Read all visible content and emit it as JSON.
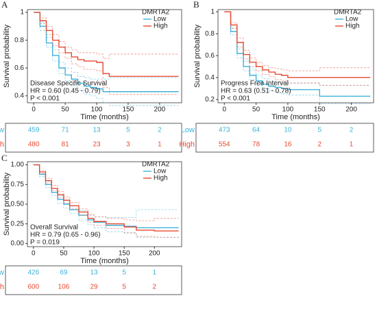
{
  "chart_data": [
    {
      "type": "km",
      "panel_label": "A",
      "legend_title": "DMRTA2",
      "xlabel": "Time (months)",
      "ylabel": "Survival probability",
      "annotation": [
        "Disease Specific Survival",
        "HR = 0.60 (0.45 - 0.79)",
        "P < 0.001"
      ],
      "xlim": [
        -10,
        235
      ],
      "xticks": [
        0,
        50,
        100,
        150,
        200
      ],
      "ylim": [
        0.35,
        1.02
      ],
      "yticks": [
        0.4,
        0.6,
        0.8,
        1.0
      ],
      "x": [
        0,
        10,
        20,
        30,
        40,
        50,
        60,
        70,
        80,
        90,
        100,
        110,
        120,
        230
      ],
      "series": [
        {
          "name": "Low",
          "color": "#3db2d9",
          "values": [
            1,
            0.9,
            0.78,
            0.69,
            0.6,
            0.55,
            0.52,
            0.49,
            0.47,
            0.46,
            0.45,
            0.43,
            0.43,
            0.43
          ],
          "lower": [
            1,
            0.87,
            0.75,
            0.65,
            0.56,
            0.51,
            0.47,
            0.44,
            0.41,
            0.4,
            0.38,
            0.35,
            0.33,
            0.33
          ],
          "upper": [
            1,
            0.93,
            0.82,
            0.73,
            0.64,
            0.6,
            0.57,
            0.54,
            0.53,
            0.52,
            0.52,
            0.52,
            0.53,
            0.53
          ],
          "at_risk": [
            459,
            71,
            13,
            5,
            2
          ]
        },
        {
          "name": "High",
          "color": "#e64a31",
          "values": [
            1,
            0.94,
            0.87,
            0.8,
            0.75,
            0.71,
            0.68,
            0.66,
            0.65,
            0.65,
            0.64,
            0.56,
            0.54,
            0.54
          ],
          "lower": [
            1,
            0.92,
            0.84,
            0.76,
            0.71,
            0.67,
            0.63,
            0.61,
            0.59,
            0.59,
            0.58,
            0.46,
            0.41,
            0.41
          ],
          "upper": [
            1,
            0.96,
            0.9,
            0.84,
            0.79,
            0.75,
            0.73,
            0.71,
            0.71,
            0.71,
            0.7,
            0.67,
            0.7,
            0.7
          ],
          "at_risk": [
            480,
            81,
            23,
            3,
            1
          ]
        }
      ]
    },
    {
      "type": "km",
      "panel_label": "B",
      "legend_title": "DMRTA2",
      "xlabel": "Time (months)",
      "ylabel": "Survival probability",
      "annotation": [
        "Progress Free Interval",
        "HR = 0.63 (0.51 - 0.78)",
        "P < 0.001"
      ],
      "xlim": [
        -10,
        235
      ],
      "xticks": [
        0,
        50,
        100,
        150,
        200
      ],
      "ylim": [
        0.17,
        1.02
      ],
      "yticks": [
        0.2,
        0.4,
        0.6,
        0.8,
        1.0
      ],
      "x": [
        0,
        10,
        20,
        30,
        40,
        50,
        60,
        70,
        80,
        90,
        100,
        150,
        230
      ],
      "series": [
        {
          "name": "Low",
          "color": "#3db2d9",
          "values": [
            1,
            0.82,
            0.62,
            0.5,
            0.42,
            0.37,
            0.34,
            0.32,
            0.31,
            0.3,
            0.29,
            0.23,
            0.23
          ],
          "lower": [
            1,
            0.79,
            0.58,
            0.46,
            0.38,
            0.33,
            0.3,
            0.28,
            0.26,
            0.25,
            0.24,
            0.16,
            0.16
          ],
          "upper": [
            1,
            0.85,
            0.66,
            0.55,
            0.47,
            0.42,
            0.39,
            0.37,
            0.36,
            0.35,
            0.35,
            0.33,
            0.33
          ],
          "at_risk": [
            473,
            64,
            10,
            5,
            2
          ]
        },
        {
          "name": "High",
          "color": "#e64a31",
          "values": [
            1,
            0.88,
            0.72,
            0.61,
            0.54,
            0.5,
            0.47,
            0.45,
            0.43,
            0.42,
            0.4,
            0.4,
            0.4
          ],
          "lower": [
            1,
            0.85,
            0.68,
            0.57,
            0.5,
            0.46,
            0.43,
            0.41,
            0.38,
            0.37,
            0.35,
            0.33,
            0.33
          ],
          "upper": [
            1,
            0.9,
            0.76,
            0.65,
            0.58,
            0.54,
            0.51,
            0.49,
            0.48,
            0.47,
            0.46,
            0.49,
            0.49
          ],
          "at_risk": [
            554,
            78,
            16,
            2,
            1
          ]
        }
      ]
    },
    {
      "type": "km",
      "panel_label": "C",
      "legend_title": "DMRTA2",
      "xlabel": "Time (months)",
      "ylabel": "Survival probability",
      "annotation": [
        "Overall Survival",
        "HR = 0.79 (0.65 - 0.96)",
        "P = 0.019"
      ],
      "xlim": [
        -10,
        245
      ],
      "xticks": [
        0,
        50,
        100,
        150,
        200
      ],
      "ylim": [
        -0.04,
        1.04
      ],
      "yticks": [
        {
          "value": 0,
          "label": "0.00"
        },
        {
          "value": 0.25,
          "label": "0.25"
        },
        {
          "value": 0.5,
          "label": "0.50"
        },
        {
          "value": 0.75,
          "label": "0.75"
        },
        {
          "value": 1,
          "label": "1.00"
        }
      ],
      "x": [
        0,
        10,
        20,
        30,
        40,
        50,
        60,
        75,
        90,
        100,
        120,
        150,
        170,
        200,
        240
      ],
      "series": [
        {
          "name": "Low",
          "color": "#3db2d9",
          "values": [
            1,
            0.88,
            0.75,
            0.65,
            0.56,
            0.5,
            0.43,
            0.36,
            0.3,
            0.27,
            0.23,
            0.22,
            0.2,
            0.2,
            0.2
          ],
          "lower": [
            1,
            0.85,
            0.71,
            0.61,
            0.51,
            0.45,
            0.38,
            0.3,
            0.24,
            0.2,
            0.15,
            0.13,
            0.08,
            0.08,
            0.08
          ],
          "upper": [
            1,
            0.91,
            0.79,
            0.7,
            0.61,
            0.55,
            0.48,
            0.42,
            0.36,
            0.34,
            0.33,
            0.33,
            0.43,
            0.43,
            0.43
          ],
          "at_risk": [
            426,
            69,
            13,
            5,
            1
          ]
        },
        {
          "name": "High",
          "color": "#e64a31",
          "values": [
            1,
            0.91,
            0.8,
            0.7,
            0.62,
            0.55,
            0.48,
            0.4,
            0.32,
            0.28,
            0.25,
            0.21,
            0.17,
            0.16,
            0.16
          ],
          "lower": [
            1,
            0.89,
            0.77,
            0.67,
            0.58,
            0.51,
            0.44,
            0.36,
            0.27,
            0.23,
            0.19,
            0.14,
            0.09,
            0.08,
            0.08
          ],
          "upper": [
            1,
            0.93,
            0.83,
            0.74,
            0.66,
            0.59,
            0.52,
            0.44,
            0.37,
            0.34,
            0.32,
            0.3,
            0.29,
            0.32,
            0.32
          ],
          "at_risk": [
            600,
            106,
            29,
            5,
            2
          ]
        }
      ]
    }
  ]
}
